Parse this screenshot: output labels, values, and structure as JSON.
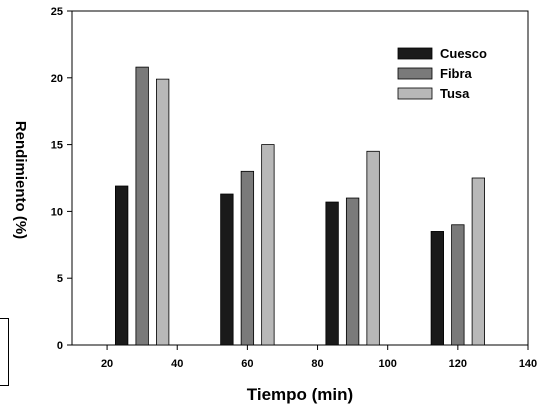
{
  "chart_data": {
    "type": "bar",
    "x": [
      30,
      60,
      90,
      120
    ],
    "series": [
      {
        "name": "Cuesco",
        "values": [
          11.9,
          11.3,
          10.7,
          8.5
        ],
        "color": "#1a1a1a"
      },
      {
        "name": "Fibra",
        "values": [
          20.8,
          13.0,
          11.0,
          9.0
        ],
        "color": "#7a7a7a"
      },
      {
        "name": "Tusa",
        "values": [
          19.9,
          15.0,
          14.5,
          12.5
        ],
        "color": "#b8b8b8"
      }
    ],
    "xlabel": "Tiempo (min)",
    "ylabel": "Rendimiento (%)",
    "xlim": [
      10,
      140
    ],
    "ylim": [
      0,
      25
    ],
    "xticks": [
      20,
      40,
      60,
      80,
      100,
      120,
      140
    ],
    "yticks": [
      0,
      5,
      10,
      15,
      20,
      25
    ],
    "legend_position": "top-right",
    "grid": false
  }
}
